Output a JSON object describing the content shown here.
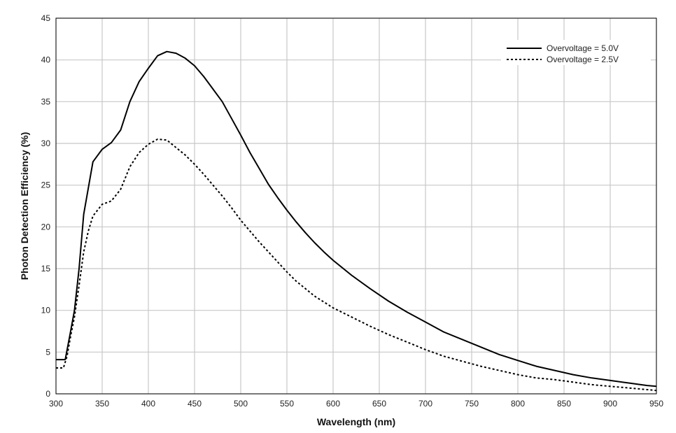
{
  "chart_data": {
    "type": "line",
    "xlabel": "Wavelength (nm)",
    "ylabel": "Photon Detection Efficiency (%)",
    "xlim": [
      300,
      950
    ],
    "ylim": [
      0,
      45
    ],
    "x_ticks": [
      300,
      350,
      400,
      450,
      500,
      550,
      600,
      650,
      700,
      750,
      800,
      850,
      900,
      950
    ],
    "y_ticks": [
      0,
      5,
      10,
      15,
      20,
      25,
      30,
      35,
      40,
      45
    ],
    "grid": true,
    "legend_position": "top-right",
    "colors": {
      "series": "#000000",
      "grid": "#c8c8c8"
    },
    "series": [
      {
        "name": "Overvoltage = 5.0V",
        "style": "solid",
        "x": [
          300,
          310,
          315,
          320,
          325,
          330,
          340,
          350,
          360,
          370,
          380,
          390,
          400,
          410,
          420,
          430,
          440,
          450,
          460,
          470,
          480,
          490,
          500,
          510,
          520,
          530,
          540,
          550,
          560,
          570,
          580,
          590,
          600,
          620,
          640,
          660,
          680,
          700,
          720,
          740,
          760,
          780,
          800,
          820,
          840,
          860,
          880,
          900,
          920,
          940,
          950
        ],
        "y": [
          4.1,
          4.1,
          7,
          10,
          15,
          21.5,
          27.8,
          29.3,
          30.1,
          31.6,
          35.0,
          37.4,
          39.0,
          40.5,
          41.0,
          40.8,
          40.2,
          39.3,
          38.0,
          36.5,
          35.0,
          33.0,
          31.0,
          28.9,
          27.0,
          25.1,
          23.5,
          22.0,
          20.6,
          19.3,
          18.1,
          17.0,
          16.0,
          14.2,
          12.6,
          11.1,
          9.8,
          8.6,
          7.4,
          6.5,
          5.6,
          4.7,
          4.0,
          3.3,
          2.8,
          2.3,
          1.9,
          1.6,
          1.3,
          1.0,
          0.9
        ]
      },
      {
        "name": "Overvoltage = 2.5V",
        "style": "dotted",
        "x": [
          300,
          308,
          312,
          316,
          320,
          325,
          330,
          335,
          340,
          350,
          360,
          370,
          380,
          390,
          400,
          410,
          420,
          430,
          440,
          450,
          460,
          470,
          480,
          490,
          500,
          510,
          520,
          530,
          540,
          550,
          560,
          570,
          580,
          590,
          600,
          620,
          640,
          660,
          680,
          700,
          720,
          740,
          760,
          780,
          800,
          820,
          840,
          860,
          880,
          900,
          920,
          940,
          950
        ],
        "y": [
          3.1,
          3.1,
          4.5,
          7,
          9.2,
          13,
          17,
          19.5,
          21.3,
          22.7,
          23.1,
          24.5,
          27.2,
          28.9,
          29.9,
          30.5,
          30.4,
          29.5,
          28.6,
          27.5,
          26.3,
          25.0,
          23.7,
          22.3,
          20.8,
          19.5,
          18.2,
          17.0,
          15.8,
          14.6,
          13.5,
          12.6,
          11.7,
          11.0,
          10.3,
          9.2,
          8.1,
          7.1,
          6.2,
          5.3,
          4.5,
          3.9,
          3.3,
          2.8,
          2.3,
          1.9,
          1.7,
          1.4,
          1.1,
          0.9,
          0.7,
          0.5,
          0.4
        ]
      }
    ]
  }
}
